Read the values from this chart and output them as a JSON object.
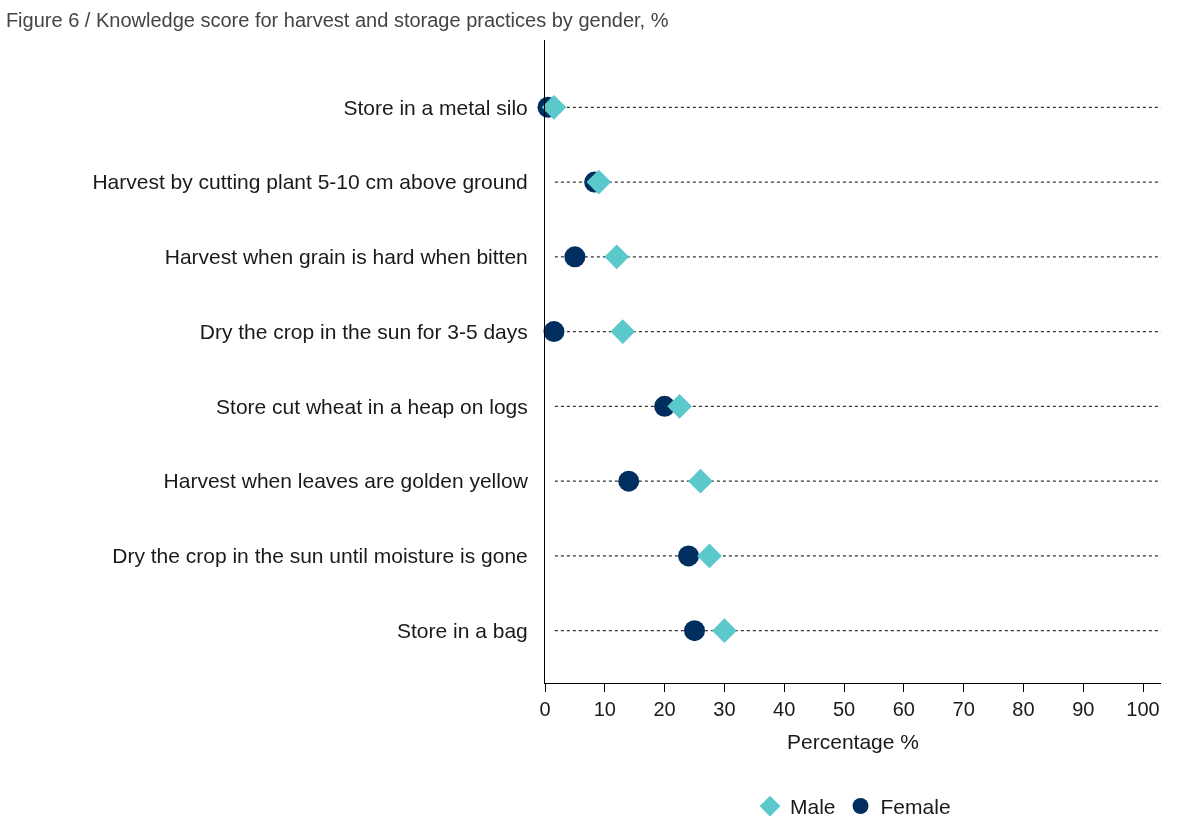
{
  "chart_data": {
    "type": "scatter",
    "title": "Figure 6 / Knowledge score for harvest and storage practices by gender, %",
    "xlabel": "Percentage %",
    "orientation": "horizontal",
    "categories": [
      "Store in a metal silo",
      "Harvest by cutting plant 5-10 cm above ground",
      "Harvest when grain is hard when bitten",
      "Dry the crop in the sun for 3-5 days",
      "Store cut wheat in a heap on logs",
      "Harvest when leaves are golden yellow",
      "Dry the crop in the sun until moisture is gone",
      "Store in a bag"
    ],
    "series": [
      {
        "name": "Male",
        "color": "#5bc8cc",
        "marker": "diamond",
        "values": [
          1.5,
          9,
          12,
          13,
          22.5,
          26,
          27.5,
          30
        ]
      },
      {
        "name": "Female",
        "color": "#002f5f",
        "marker": "circle",
        "values": [
          0.5,
          8.3,
          5,
          1.5,
          20,
          14,
          24,
          25
        ]
      }
    ],
    "xlim": [
      0,
      103
    ],
    "xticks": [
      0,
      10,
      20,
      30,
      40,
      50,
      60,
      70,
      80,
      90,
      100
    ],
    "grid": "y",
    "line_style": "dotted",
    "legend": "bottom"
  }
}
